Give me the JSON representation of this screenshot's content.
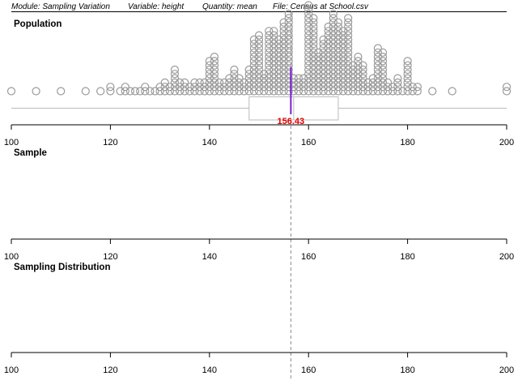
{
  "header": {
    "module": "Module: Sampling Variation",
    "variable": "Variable: height",
    "quantity": "Quantity: mean",
    "file": "File: Census at School.csv"
  },
  "panels": {
    "population": {
      "title": "Population"
    },
    "sample": {
      "title": "Sample"
    },
    "sampling_distribution": {
      "title": "Sampling Distribution"
    }
  },
  "axis": {
    "min": 100,
    "max": 200,
    "ticks": [
      "100",
      "120",
      "140",
      "160",
      "180",
      "200"
    ]
  },
  "statistics": {
    "mean": 156.43,
    "mean_label": "156.43",
    "boxplot": {
      "min": 100,
      "q1": 148,
      "median": 157,
      "q3": 166,
      "max": 200
    }
  },
  "colors": {
    "dot_stroke": "#9a9a9a",
    "box_stroke": "#bbbbbb",
    "mean_line": "#7a1fd6",
    "mean_label": "#e00000",
    "guide_line": "#888888"
  },
  "chart_data": {
    "type": "scatter",
    "title": "Population",
    "xlim": [
      100,
      200
    ],
    "points": [
      {
        "x": 100,
        "count": 1
      },
      {
        "x": 105,
        "count": 1
      },
      {
        "x": 110,
        "count": 1
      },
      {
        "x": 115,
        "count": 1
      },
      {
        "x": 118,
        "count": 1
      },
      {
        "x": 120,
        "count": 2
      },
      {
        "x": 122,
        "count": 1
      },
      {
        "x": 123,
        "count": 2
      },
      {
        "x": 124,
        "count": 1
      },
      {
        "x": 125,
        "count": 1
      },
      {
        "x": 126,
        "count": 1
      },
      {
        "x": 127,
        "count": 2
      },
      {
        "x": 128,
        "count": 1
      },
      {
        "x": 129,
        "count": 1
      },
      {
        "x": 130,
        "count": 2
      },
      {
        "x": 131,
        "count": 3
      },
      {
        "x": 132,
        "count": 2
      },
      {
        "x": 133,
        "count": 6
      },
      {
        "x": 134,
        "count": 3
      },
      {
        "x": 135,
        "count": 3
      },
      {
        "x": 136,
        "count": 2
      },
      {
        "x": 137,
        "count": 3
      },
      {
        "x": 138,
        "count": 3
      },
      {
        "x": 139,
        "count": 3
      },
      {
        "x": 140,
        "count": 8
      },
      {
        "x": 141,
        "count": 9
      },
      {
        "x": 142,
        "count": 3
      },
      {
        "x": 143,
        "count": 3
      },
      {
        "x": 144,
        "count": 4
      },
      {
        "x": 145,
        "count": 6
      },
      {
        "x": 146,
        "count": 4
      },
      {
        "x": 147,
        "count": 3
      },
      {
        "x": 148,
        "count": 6
      },
      {
        "x": 149,
        "count": 13
      },
      {
        "x": 150,
        "count": 14
      },
      {
        "x": 151,
        "count": 5
      },
      {
        "x": 152,
        "count": 15
      },
      {
        "x": 153,
        "count": 15
      },
      {
        "x": 154,
        "count": 13
      },
      {
        "x": 155,
        "count": 17
      },
      {
        "x": 156,
        "count": 19
      },
      {
        "x": 157,
        "count": 4
      },
      {
        "x": 158,
        "count": 4
      },
      {
        "x": 159,
        "count": 4
      },
      {
        "x": 160,
        "count": 21
      },
      {
        "x": 161,
        "count": 18
      },
      {
        "x": 162,
        "count": 10
      },
      {
        "x": 163,
        "count": 13
      },
      {
        "x": 164,
        "count": 16
      },
      {
        "x": 165,
        "count": 19
      },
      {
        "x": 166,
        "count": 17
      },
      {
        "x": 167,
        "count": 15
      },
      {
        "x": 168,
        "count": 18
      },
      {
        "x": 169,
        "count": 7
      },
      {
        "x": 170,
        "count": 9
      },
      {
        "x": 171,
        "count": 7
      },
      {
        "x": 172,
        "count": 3
      },
      {
        "x": 173,
        "count": 4
      },
      {
        "x": 174,
        "count": 11
      },
      {
        "x": 175,
        "count": 10
      },
      {
        "x": 176,
        "count": 3
      },
      {
        "x": 177,
        "count": 2
      },
      {
        "x": 178,
        "count": 4
      },
      {
        "x": 179,
        "count": 1
      },
      {
        "x": 180,
        "count": 8
      },
      {
        "x": 181,
        "count": 2
      },
      {
        "x": 182,
        "count": 2
      },
      {
        "x": 185,
        "count": 1
      },
      {
        "x": 189,
        "count": 1
      },
      {
        "x": 200,
        "count": 2
      }
    ]
  }
}
